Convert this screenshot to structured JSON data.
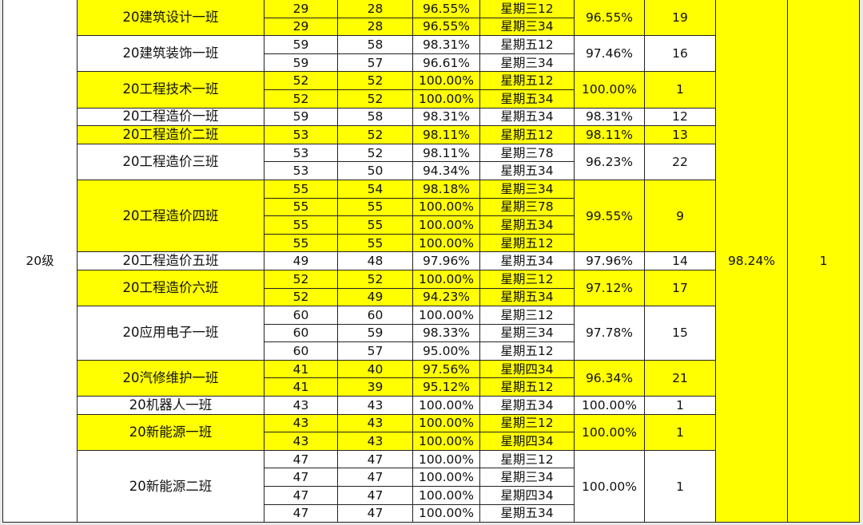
{
  "highlight_color": "#ffff00",
  "grade": {
    "label": "20级",
    "rate": "98.24%",
    "rank": "1"
  },
  "classes": [
    {
      "name": "20建筑设计一班",
      "highlight": true,
      "rate": "96.55%",
      "rank": "19",
      "sessions": [
        [
          "29",
          "28",
          "96.55%",
          "星期三12"
        ],
        [
          "29",
          "28",
          "96.55%",
          "星期三34"
        ]
      ]
    },
    {
      "name": "20建筑装饰一班",
      "highlight": false,
      "rate": "97.46%",
      "rank": "16",
      "sessions": [
        [
          "59",
          "58",
          "98.31%",
          "星期五12"
        ],
        [
          "59",
          "57",
          "96.61%",
          "星期三34"
        ]
      ]
    },
    {
      "name": "20工程技术一班",
      "highlight": true,
      "rate": "100.00%",
      "rank": "1",
      "sessions": [
        [
          "52",
          "52",
          "100.00%",
          "星期五12"
        ],
        [
          "52",
          "52",
          "100.00%",
          "星期五34"
        ]
      ]
    },
    {
      "name": "20工程造价一班",
      "highlight": false,
      "rate": "98.31%",
      "rank": "12",
      "sessions": [
        [
          "59",
          "58",
          "98.31%",
          "星期五34"
        ]
      ]
    },
    {
      "name": "20工程造价二班",
      "highlight": true,
      "rate": "98.11%",
      "rank": "13",
      "sessions": [
        [
          "53",
          "52",
          "98.11%",
          "星期五12"
        ]
      ]
    },
    {
      "name": "20工程造价三班",
      "highlight": false,
      "rate": "96.23%",
      "rank": "22",
      "sessions": [
        [
          "53",
          "52",
          "98.11%",
          "星期三78"
        ],
        [
          "53",
          "50",
          "94.34%",
          "星期五34"
        ]
      ]
    },
    {
      "name": "20工程造价四班",
      "highlight": true,
      "rate": "99.55%",
      "rank": "9",
      "sessions": [
        [
          "55",
          "54",
          "98.18%",
          "星期三34"
        ],
        [
          "55",
          "55",
          "100.00%",
          "星期三78"
        ],
        [
          "55",
          "55",
          "100.00%",
          "星期五34"
        ],
        [
          "55",
          "55",
          "100.00%",
          "星期五12"
        ]
      ]
    },
    {
      "name": "20工程造价五班",
      "highlight": false,
      "rate": "97.96%",
      "rank": "14",
      "sessions": [
        [
          "49",
          "48",
          "97.96%",
          "星期五34"
        ]
      ]
    },
    {
      "name": "20工程造价六班",
      "highlight": true,
      "rate": "97.12%",
      "rank": "17",
      "sessions": [
        [
          "52",
          "52",
          "100.00%",
          "星期三12"
        ],
        [
          "52",
          "49",
          "94.23%",
          "星期五34"
        ]
      ]
    },
    {
      "name": "20应用电子一班",
      "highlight": false,
      "rate": "97.78%",
      "rank": "15",
      "sessions": [
        [
          "60",
          "60",
          "100.00%",
          "星期三12"
        ],
        [
          "60",
          "59",
          "98.33%",
          "星期三34"
        ],
        [
          "60",
          "57",
          "95.00%",
          "星期五12"
        ]
      ]
    },
    {
      "name": "20汽修维护一班",
      "highlight": true,
      "rate": "96.34%",
      "rank": "21",
      "sessions": [
        [
          "41",
          "40",
          "97.56%",
          "星期四34"
        ],
        [
          "41",
          "39",
          "95.12%",
          "星期五12"
        ]
      ]
    },
    {
      "name": "20机器人一班",
      "highlight": false,
      "rate": "100.00%",
      "rank": "1",
      "sessions": [
        [
          "43",
          "43",
          "100.00%",
          "星期五34"
        ]
      ]
    },
    {
      "name": "20新能源一班",
      "highlight": true,
      "rate": "100.00%",
      "rank": "1",
      "sessions": [
        [
          "43",
          "43",
          "100.00%",
          "星期三12"
        ],
        [
          "43",
          "43",
          "100.00%",
          "星期四34"
        ]
      ]
    },
    {
      "name": "20新能源二班",
      "highlight": false,
      "rate": "100.00%",
      "rank": "1",
      "sessions": [
        [
          "47",
          "47",
          "100.00%",
          "星期三12"
        ],
        [
          "47",
          "47",
          "100.00%",
          "星期三34"
        ],
        [
          "47",
          "47",
          "100.00%",
          "星期四34"
        ],
        [
          "47",
          "47",
          "100.00%",
          "星期五34"
        ]
      ]
    }
  ]
}
